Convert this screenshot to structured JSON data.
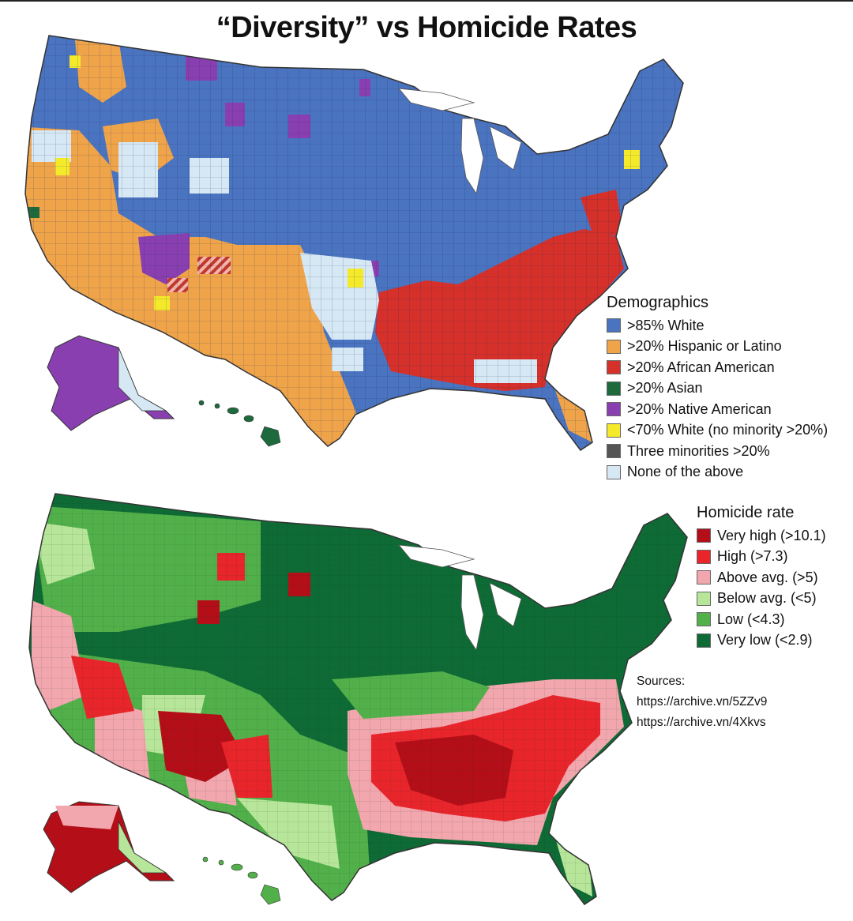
{
  "title": "“Diversity” vs Homicide Rates",
  "demographics": {
    "title": "Demographics",
    "items": [
      {
        "label": ">85% White",
        "color": "#4a73c0"
      },
      {
        "label": ">20% Hispanic or Latino",
        "color": "#f0a44a"
      },
      {
        "label": ">20% African American",
        "color": "#d6302a"
      },
      {
        "label": ">20% Asian",
        "color": "#1d6b3c"
      },
      {
        "label": ">20% Native American",
        "color": "#8a3fb0"
      },
      {
        "label": "<70% White (no minority >20%)",
        "color": "#f4ea2a"
      },
      {
        "label": "Three minorities >20%",
        "color": "#555555"
      },
      {
        "label": "None of the above",
        "color": "#d7e8f5"
      }
    ]
  },
  "homicide": {
    "title": "Homicide rate",
    "items": [
      {
        "label": "Very high (>10.1)",
        "color": "#b40f18"
      },
      {
        "label": "High (>7.3)",
        "color": "#e8252b"
      },
      {
        "label": "Above avg. (>5)",
        "color": "#f2a6ae"
      },
      {
        "label": "Below avg. (<5)",
        "color": "#b7e69a"
      },
      {
        "label": "Low (<4.3)",
        "color": "#52b04a"
      },
      {
        "label": "Very low (<2.9)",
        "color": "#0f6b35"
      }
    ]
  },
  "sources": {
    "label": "Sources:",
    "links": [
      "https://archive.vn/5ZZv9",
      "https://archive.vn/4Xkvs"
    ]
  }
}
